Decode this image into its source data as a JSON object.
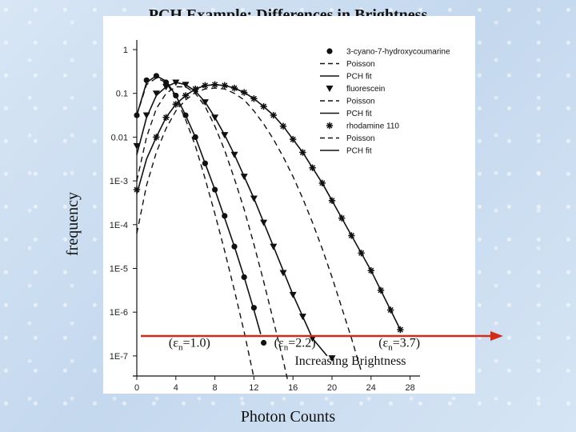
{
  "slide": {
    "title": "PCH Example: Differences in Brightness",
    "y_title": "frequency",
    "x_title": "Photon Counts"
  },
  "colors": {
    "arrow": "#d42a1a",
    "line": "#111111"
  },
  "chart_data": {
    "type": "scatter",
    "title": "PCH Example: Differences in Brightness",
    "xlabel": "Photon Counts",
    "ylabel": "frequency",
    "yscale": "log",
    "xlim": [
      -1,
      30
    ],
    "ylim_log10": [
      -7.2,
      0.15
    ],
    "x_ticks": [
      0,
      4,
      8,
      12,
      16,
      20,
      24,
      28
    ],
    "y_ticks": [
      {
        "exp": 0,
        "label": "1"
      },
      {
        "exp": -1,
        "label": "0.1"
      },
      {
        "exp": -2,
        "label": "0.01"
      },
      {
        "exp": -3,
        "label": "1E-3"
      },
      {
        "exp": -4,
        "label": "1E-4"
      },
      {
        "exp": -5,
        "label": "1E-5"
      },
      {
        "exp": -6,
        "label": "1E-6"
      },
      {
        "exp": -7,
        "label": "1E-7"
      }
    ],
    "legend": [
      {
        "label": "3-cyano-7-hydroxycoumarine",
        "style": "dot"
      },
      {
        "label": "Poisson",
        "style": "dash"
      },
      {
        "label": "PCH fit",
        "style": "solid"
      },
      {
        "label": "fluorescein",
        "style": "triangle"
      },
      {
        "label": "Poisson",
        "style": "dash"
      },
      {
        "label": "PCH fit",
        "style": "solid"
      },
      {
        "label": "rhodamine 110",
        "style": "star"
      },
      {
        "label": "Poisson",
        "style": "dash"
      },
      {
        "label": "PCH fit",
        "style": "solid"
      }
    ],
    "series": [
      {
        "name": "3-cyano-7-hydroxycoumarine",
        "marker": "dot",
        "points": [
          [
            0,
            -1.5
          ],
          [
            1,
            -0.7
          ],
          [
            2,
            -0.6
          ],
          [
            3,
            -0.75
          ],
          [
            4,
            -1.05
          ],
          [
            5,
            -1.5
          ],
          [
            6,
            -2.0
          ],
          [
            7,
            -2.6
          ],
          [
            8,
            -3.2
          ],
          [
            9,
            -3.8
          ],
          [
            10,
            -4.5
          ],
          [
            11,
            -5.2
          ],
          [
            12,
            -5.9
          ],
          [
            13,
            -6.7
          ]
        ],
        "fit": [
          [
            0,
            -1.5
          ],
          [
            1,
            -0.75
          ],
          [
            2,
            -0.6
          ],
          [
            3,
            -0.72
          ],
          [
            4,
            -1.05
          ],
          [
            5,
            -1.5
          ],
          [
            6,
            -2.0
          ],
          [
            7,
            -2.6
          ],
          [
            8,
            -3.2
          ],
          [
            9,
            -3.85
          ],
          [
            10,
            -4.5
          ],
          [
            11,
            -5.2
          ],
          [
            12,
            -5.95
          ],
          [
            12.7,
            -6.5
          ]
        ],
        "poisson": [
          [
            0,
            -1.5
          ],
          [
            1,
            -0.8
          ],
          [
            2,
            -0.65
          ],
          [
            3,
            -0.75
          ],
          [
            4,
            -1.1
          ],
          [
            5,
            -1.6
          ],
          [
            6,
            -2.2
          ],
          [
            7,
            -2.95
          ],
          [
            8,
            -3.75
          ],
          [
            9,
            -4.6
          ],
          [
            10,
            -5.5
          ],
          [
            11,
            -6.45
          ],
          [
            12,
            -7.5
          ]
        ]
      },
      {
        "name": "fluorescein",
        "marker": "triangle",
        "points": [
          [
            0,
            -2.2
          ],
          [
            1,
            -1.5
          ],
          [
            2,
            -1.0
          ],
          [
            3,
            -0.85
          ],
          [
            4,
            -0.75
          ],
          [
            5,
            -0.8
          ],
          [
            6,
            -0.95
          ],
          [
            7,
            -1.2
          ],
          [
            8,
            -1.55
          ],
          [
            9,
            -1.95
          ],
          [
            10,
            -2.4
          ],
          [
            11,
            -2.9
          ],
          [
            12,
            -3.4
          ],
          [
            13,
            -3.95
          ],
          [
            14,
            -4.5
          ],
          [
            15,
            -5.1
          ],
          [
            16,
            -5.6
          ],
          [
            17,
            -6.1
          ],
          [
            18,
            -6.6
          ],
          [
            20,
            -7.05
          ]
        ],
        "fit": [
          [
            0,
            -2.4
          ],
          [
            1,
            -1.55
          ],
          [
            2,
            -1.05
          ],
          [
            3,
            -0.85
          ],
          [
            4,
            -0.75
          ],
          [
            5,
            -0.8
          ],
          [
            6,
            -0.95
          ],
          [
            7,
            -1.2
          ],
          [
            8,
            -1.55
          ],
          [
            9,
            -1.95
          ],
          [
            10,
            -2.4
          ],
          [
            11,
            -2.9
          ],
          [
            12,
            -3.4
          ],
          [
            13,
            -3.95
          ],
          [
            14,
            -4.5
          ],
          [
            15,
            -5.05
          ],
          [
            16,
            -5.6
          ],
          [
            17,
            -6.1
          ],
          [
            18,
            -6.6
          ],
          [
            19.5,
            -7.0
          ]
        ],
        "poisson": [
          [
            0,
            -3.0
          ],
          [
            1,
            -2.0
          ],
          [
            2,
            -1.35
          ],
          [
            3,
            -1.0
          ],
          [
            4,
            -0.85
          ],
          [
            5,
            -0.85
          ],
          [
            6,
            -1.0
          ],
          [
            7,
            -1.3
          ],
          [
            8,
            -1.75
          ],
          [
            9,
            -2.3
          ],
          [
            10,
            -2.95
          ],
          [
            11,
            -3.65
          ],
          [
            12,
            -4.45
          ],
          [
            13,
            -5.3
          ],
          [
            14,
            -6.2
          ],
          [
            15,
            -7.1
          ],
          [
            15.5,
            -7.6
          ]
        ]
      },
      {
        "name": "rhodamine 110",
        "marker": "star",
        "points": [
          [
            0,
            -3.2
          ],
          [
            2,
            -2.0
          ],
          [
            3,
            -1.55
          ],
          [
            4,
            -1.25
          ],
          [
            5,
            -1.05
          ],
          [
            6,
            -0.9
          ],
          [
            7,
            -0.82
          ],
          [
            8,
            -0.8
          ],
          [
            9,
            -0.82
          ],
          [
            10,
            -0.88
          ],
          [
            11,
            -0.98
          ],
          [
            12,
            -1.12
          ],
          [
            13,
            -1.3
          ],
          [
            14,
            -1.5
          ],
          [
            15,
            -1.75
          ],
          [
            16,
            -2.05
          ],
          [
            17,
            -2.35
          ],
          [
            18,
            -2.7
          ],
          [
            19,
            -3.05
          ],
          [
            20,
            -3.45
          ],
          [
            21,
            -3.85
          ],
          [
            22,
            -4.25
          ],
          [
            23,
            -4.65
          ],
          [
            24,
            -5.05
          ],
          [
            25,
            -5.5
          ],
          [
            26,
            -5.95
          ],
          [
            27,
            -6.4
          ]
        ],
        "fit": [
          [
            0,
            -3.3
          ],
          [
            1,
            -2.5
          ],
          [
            2,
            -2.0
          ],
          [
            3,
            -1.55
          ],
          [
            4,
            -1.25
          ],
          [
            5,
            -1.05
          ],
          [
            6,
            -0.9
          ],
          [
            7,
            -0.82
          ],
          [
            8,
            -0.8
          ],
          [
            9,
            -0.82
          ],
          [
            10,
            -0.88
          ],
          [
            11,
            -0.98
          ],
          [
            12,
            -1.12
          ],
          [
            13,
            -1.3
          ],
          [
            14,
            -1.5
          ],
          [
            15,
            -1.75
          ],
          [
            16,
            -2.05
          ],
          [
            17,
            -2.35
          ],
          [
            18,
            -2.7
          ],
          [
            19,
            -3.05
          ],
          [
            20,
            -3.45
          ],
          [
            21,
            -3.85
          ],
          [
            22,
            -4.25
          ],
          [
            23,
            -4.65
          ],
          [
            24,
            -5.05
          ],
          [
            25,
            -5.5
          ],
          [
            26,
            -5.95
          ],
          [
            27,
            -6.4
          ]
        ],
        "poisson": [
          [
            0,
            -4.2
          ],
          [
            1,
            -3.1
          ],
          [
            2,
            -2.35
          ],
          [
            3,
            -1.8
          ],
          [
            4,
            -1.4
          ],
          [
            5,
            -1.15
          ],
          [
            6,
            -0.98
          ],
          [
            7,
            -0.9
          ],
          [
            8,
            -0.88
          ],
          [
            9,
            -0.9
          ],
          [
            10,
            -1.0
          ],
          [
            11,
            -1.15
          ],
          [
            12,
            -1.4
          ],
          [
            13,
            -1.7
          ],
          [
            14,
            -2.05
          ],
          [
            15,
            -2.45
          ],
          [
            16,
            -2.9
          ],
          [
            17,
            -3.4
          ],
          [
            18,
            -3.95
          ],
          [
            19,
            -4.55
          ],
          [
            20,
            -5.2
          ],
          [
            21,
            -5.9
          ],
          [
            22,
            -6.6
          ],
          [
            23,
            -7.35
          ]
        ]
      }
    ],
    "annotations": [
      {
        "id": "eps1",
        "prefix": "(ε",
        "sub": "n",
        "suffix": "=1.0)",
        "x": 5.4,
        "exp": -6.7
      },
      {
        "id": "eps2",
        "prefix": "(ε",
        "sub": "n",
        "suffix": "=2.2)",
        "x": 16.2,
        "exp": -6.7
      },
      {
        "id": "eps3",
        "prefix": "(ε",
        "sub": "n",
        "suffix": "=3.7)",
        "x": 26.9,
        "exp": -6.7
      }
    ],
    "arrow_label": "Increasing Brightness"
  }
}
